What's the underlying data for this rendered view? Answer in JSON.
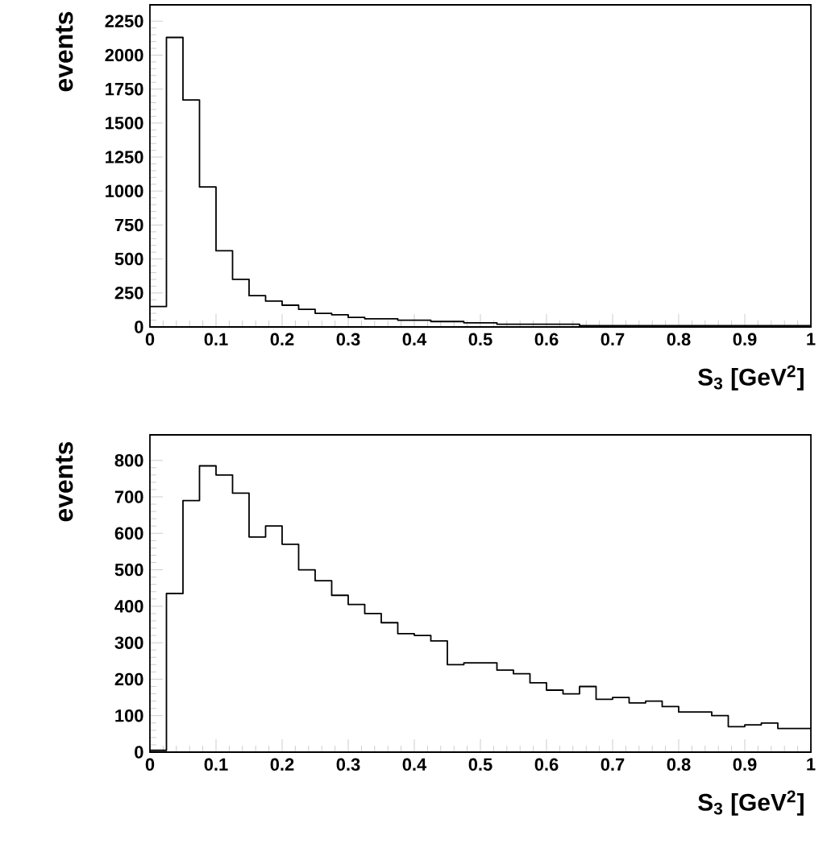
{
  "chart_data": [
    {
      "type": "histogram",
      "xlabel": "S$_{3}$ [GeV$^{2}$]",
      "ylabel": "events",
      "bins": [
        0,
        0.025,
        0.05,
        0.075,
        0.1,
        0.125,
        0.15,
        0.175,
        0.2,
        0.225,
        0.25,
        0.275,
        0.3,
        0.325,
        0.35,
        0.375,
        0.4,
        0.425,
        0.45,
        0.475,
        0.5,
        0.525,
        0.55,
        0.575,
        0.6,
        0.625,
        0.65,
        0.675,
        0.7,
        0.725,
        0.75,
        0.775,
        0.8,
        0.825,
        0.85,
        0.875,
        0.9,
        0.925,
        0.95,
        0.975,
        1
      ],
      "values": [
        150,
        2130,
        1670,
        1030,
        560,
        350,
        230,
        190,
        160,
        130,
        100,
        90,
        70,
        60,
        60,
        50,
        50,
        40,
        40,
        30,
        30,
        20,
        20,
        20,
        20,
        20,
        10,
        10,
        10,
        10,
        10,
        10,
        10,
        10,
        10,
        10,
        10,
        10,
        10,
        10
      ],
      "xlim": [
        0,
        1
      ],
      "ylim": [
        0,
        2370
      ],
      "xticks": [
        0,
        0.1,
        0.2,
        0.3,
        0.4,
        0.5,
        0.6,
        0.7,
        0.8,
        0.9,
        1
      ],
      "yticks": [
        0,
        250,
        500,
        750,
        1000,
        1250,
        1500,
        1750,
        2000,
        2250
      ]
    },
    {
      "type": "histogram",
      "xlabel": "S$_{3}$ [GeV$^{2}$]",
      "ylabel": "events",
      "bins": [
        0,
        0.025,
        0.05,
        0.075,
        0.1,
        0.125,
        0.15,
        0.175,
        0.2,
        0.225,
        0.25,
        0.275,
        0.3,
        0.325,
        0.35,
        0.375,
        0.4,
        0.425,
        0.45,
        0.475,
        0.5,
        0.525,
        0.55,
        0.575,
        0.6,
        0.625,
        0.65,
        0.675,
        0.7,
        0.725,
        0.75,
        0.775,
        0.8,
        0.825,
        0.85,
        0.875,
        0.9,
        0.925,
        0.95,
        0.975,
        1
      ],
      "values": [
        5,
        435,
        690,
        785,
        760,
        710,
        590,
        620,
        570,
        500,
        470,
        430,
        405,
        380,
        355,
        325,
        320,
        305,
        240,
        245,
        245,
        225,
        215,
        190,
        170,
        160,
        180,
        145,
        150,
        135,
        140,
        125,
        110,
        110,
        100,
        70,
        75,
        80,
        65,
        65
      ],
      "xlim": [
        0,
        1
      ],
      "ylim": [
        0,
        870
      ],
      "xticks": [
        0,
        0.1,
        0.2,
        0.3,
        0.4,
        0.5,
        0.6,
        0.7,
        0.8,
        0.9,
        1
      ],
      "yticks": [
        0,
        100,
        200,
        300,
        400,
        500,
        600,
        700,
        800
      ]
    }
  ]
}
